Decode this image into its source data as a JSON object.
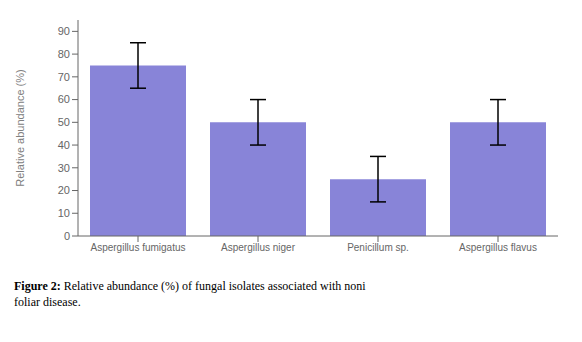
{
  "chart_data": {
    "type": "bar",
    "categories": [
      "Aspergillus fumigatus",
      "Aspergillus niger",
      "Penicillum sp.",
      "Aspergillus flavus"
    ],
    "values": [
      75,
      50,
      25,
      50
    ],
    "error_bars": [
      10,
      10,
      10,
      10
    ],
    "ylabel": "Relative abundance (%)",
    "ylim": [
      0,
      95
    ],
    "yticks": [
      0,
      10,
      20,
      30,
      40,
      50,
      60,
      70,
      80,
      90
    ],
    "grid": false,
    "annotations": [
      "Figure 2:",
      "Relative abundance (%) of fungal isolates associated with noni\nfoliar disease."
    ]
  }
}
